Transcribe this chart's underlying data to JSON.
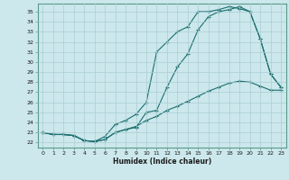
{
  "xlabel": "Humidex (Indice chaleur)",
  "background_color": "#cce8ec",
  "grid_color": "#aacdd4",
  "line_color": "#1a6e6e",
  "xlim": [
    -0.5,
    23.5
  ],
  "ylim": [
    21.5,
    35.8
  ],
  "xticks": [
    0,
    1,
    2,
    3,
    4,
    5,
    6,
    7,
    8,
    9,
    10,
    11,
    12,
    13,
    14,
    15,
    16,
    17,
    18,
    19,
    20,
    21,
    22,
    23
  ],
  "yticks": [
    22,
    23,
    24,
    25,
    26,
    27,
    28,
    29,
    30,
    31,
    32,
    33,
    34,
    35
  ],
  "line1_y": [
    23.0,
    22.8,
    22.8,
    22.7,
    22.2,
    22.1,
    22.3,
    23.0,
    23.3,
    23.5,
    25.0,
    25.2,
    27.5,
    29.5,
    30.8,
    33.2,
    34.5,
    35.0,
    35.2,
    35.5,
    35.0,
    32.3,
    28.8,
    27.5
  ],
  "line2_y": [
    23.0,
    22.8,
    22.8,
    22.7,
    22.2,
    22.1,
    22.6,
    23.8,
    24.2,
    24.8,
    26.0,
    31.0,
    32.0,
    33.0,
    33.5,
    35.0,
    35.0,
    35.2,
    35.5,
    35.3,
    35.0,
    32.3,
    28.8,
    27.5
  ],
  "line3_y": [
    23.0,
    22.8,
    22.8,
    22.7,
    22.2,
    22.1,
    22.3,
    23.0,
    23.3,
    23.6,
    24.2,
    24.6,
    25.2,
    25.6,
    26.1,
    26.6,
    27.1,
    27.5,
    27.9,
    28.1,
    28.0,
    27.6,
    27.2,
    27.2
  ]
}
